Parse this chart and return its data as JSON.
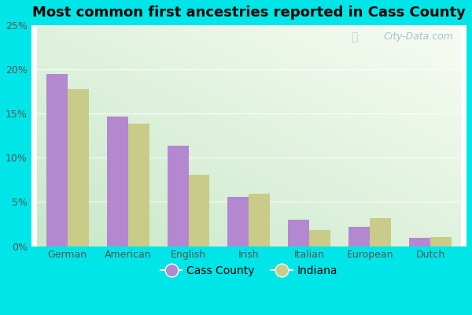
{
  "title": "Most common first ancestries reported in Cass County",
  "categories": [
    "German",
    "American",
    "English",
    "Irish",
    "Italian",
    "European",
    "Dutch"
  ],
  "cass_county": [
    19.5,
    14.7,
    11.4,
    5.6,
    3.0,
    2.2,
    0.9
  ],
  "indiana": [
    17.8,
    13.9,
    8.1,
    5.9,
    1.8,
    3.2,
    1.0
  ],
  "cass_color": "#b388d0",
  "indiana_color": "#c8cc88",
  "background_color": "#00e5e8",
  "ylim": [
    0,
    25
  ],
  "yticks": [
    0,
    5,
    10,
    15,
    20,
    25
  ],
  "ytick_labels": [
    "0%",
    "5%",
    "10%",
    "15%",
    "20%",
    "25%"
  ],
  "bar_width": 0.35,
  "legend_cass": "Cass County",
  "legend_indiana": "Indiana",
  "watermark": "City-Data.com",
  "title_fontsize": 13,
  "tick_fontsize": 9,
  "legend_fontsize": 10,
  "grid_color": "#ddeecc",
  "plot_bg_topleft": "#d8efd8",
  "plot_bg_bottomright": "#f5fffb"
}
